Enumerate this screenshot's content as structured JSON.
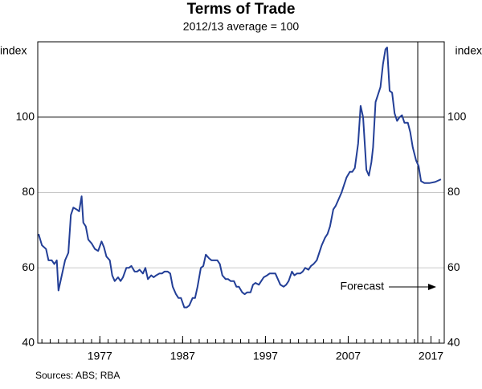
{
  "chart_data": {
    "type": "line",
    "title": "Terms of Trade",
    "subtitle": "2012/13 average = 100",
    "ylabel": "index",
    "y2label": "index",
    "source": "Sources:  ABS; RBA",
    "annotation": "Forecast",
    "forecast_start": 2015.4,
    "reference_line": 100,
    "grid": true,
    "xlim": [
      1969.5,
      2018.6
    ],
    "xticks": [
      1977,
      1987,
      1997,
      2007,
      2017
    ],
    "ylim": [
      40,
      120
    ],
    "yticks": [
      40,
      60,
      80,
      100
    ],
    "y2lim": [
      40,
      120
    ],
    "y2ticks": [
      40,
      60,
      80,
      100
    ],
    "x": [
      1969.6,
      1970,
      1970.5,
      1970.8,
      1971.2,
      1971.5,
      1971.8,
      1972,
      1972.4,
      1972.8,
      1973.2,
      1973.5,
      1973.8,
      1974.2,
      1974.5,
      1974.8,
      1975,
      1975.3,
      1975.6,
      1976,
      1976.4,
      1976.8,
      1977.2,
      1977.5,
      1977.8,
      1978.2,
      1978.5,
      1978.8,
      1979.2,
      1979.5,
      1979.8,
      1980.2,
      1980.5,
      1980.8,
      1981.2,
      1981.5,
      1981.8,
      1982.2,
      1982.5,
      1982.8,
      1983.2,
      1983.5,
      1983.8,
      1984.2,
      1984.5,
      1984.8,
      1985.2,
      1985.5,
      1985.8,
      1986.2,
      1986.5,
      1986.8,
      1987.2,
      1987.5,
      1987.8,
      1988.2,
      1988.5,
      1988.8,
      1989.2,
      1989.5,
      1989.8,
      1990.2,
      1990.5,
      1990.8,
      1991.2,
      1991.5,
      1991.8,
      1992.2,
      1992.5,
      1992.8,
      1993.2,
      1993.5,
      1993.8,
      1994.2,
      1994.5,
      1994.8,
      1995.2,
      1995.5,
      1995.8,
      1996.2,
      1996.5,
      1996.8,
      1997.2,
      1997.5,
      1997.8,
      1998.2,
      1998.5,
      1998.8,
      1999.2,
      1999.5,
      1999.8,
      2000.2,
      2000.5,
      2000.8,
      2001.2,
      2001.5,
      2001.8,
      2002.2,
      2002.5,
      2002.8,
      2003.2,
      2003.5,
      2003.8,
      2004.2,
      2004.5,
      2004.8,
      2005.2,
      2005.5,
      2005.8,
      2006.2,
      2006.5,
      2006.8,
      2007.2,
      2007.5,
      2007.8,
      2008.2,
      2008.5,
      2008.8,
      2009.2,
      2009.5,
      2009.8,
      2010,
      2010.3,
      2010.6,
      2010.9,
      2011.2,
      2011.5,
      2011.7,
      2012,
      2012.3,
      2012.6,
      2012.9,
      2013.2,
      2013.5,
      2013.8,
      2014.2,
      2014.5,
      2014.8,
      2015.2,
      2015.5,
      2015.8,
      2016.2,
      2016.8,
      2017.5,
      2018.2
    ],
    "series": [
      {
        "name": "Terms of trade",
        "color": "#233f97",
        "values": [
          69,
          66,
          65,
          62,
          62,
          61,
          62,
          54,
          58,
          62,
          64,
          74,
          76,
          75.5,
          75,
          79,
          72,
          71,
          67.5,
          66.5,
          65,
          64.5,
          67,
          65.5,
          63,
          62,
          58,
          56.5,
          57.5,
          56.5,
          57.5,
          60,
          60,
          60.5,
          59,
          59,
          59.5,
          58.5,
          60,
          57,
          58,
          57.5,
          58,
          58.5,
          58.5,
          59,
          59,
          58.5,
          55,
          53,
          52,
          52,
          49.5,
          49.5,
          50,
          52,
          52,
          55,
          60,
          60.5,
          63.5,
          62.5,
          62,
          62,
          62,
          61,
          58,
          57,
          57,
          56.5,
          56.5,
          55,
          55,
          53.5,
          53,
          53.5,
          53.5,
          55.5,
          56,
          55.5,
          56.5,
          57.5,
          58,
          58.5,
          58.5,
          58.5,
          57,
          55.5,
          55,
          55.5,
          56.5,
          59,
          58,
          58.5,
          58.5,
          59,
          60,
          59.5,
          60.5,
          61,
          62,
          64,
          66,
          68,
          69,
          71,
          75.5,
          76.5,
          78,
          80,
          82,
          84,
          85.5,
          85.5,
          86.5,
          93,
          103,
          100,
          86,
          84.5,
          88,
          92,
          104,
          106,
          108,
          114,
          118,
          118.5,
          107,
          106.5,
          101,
          99,
          100,
          100.5,
          98.5,
          98.5,
          96,
          92,
          88.5,
          87,
          83,
          82.5,
          82.5,
          82.8,
          83.5
        ]
      }
    ]
  }
}
